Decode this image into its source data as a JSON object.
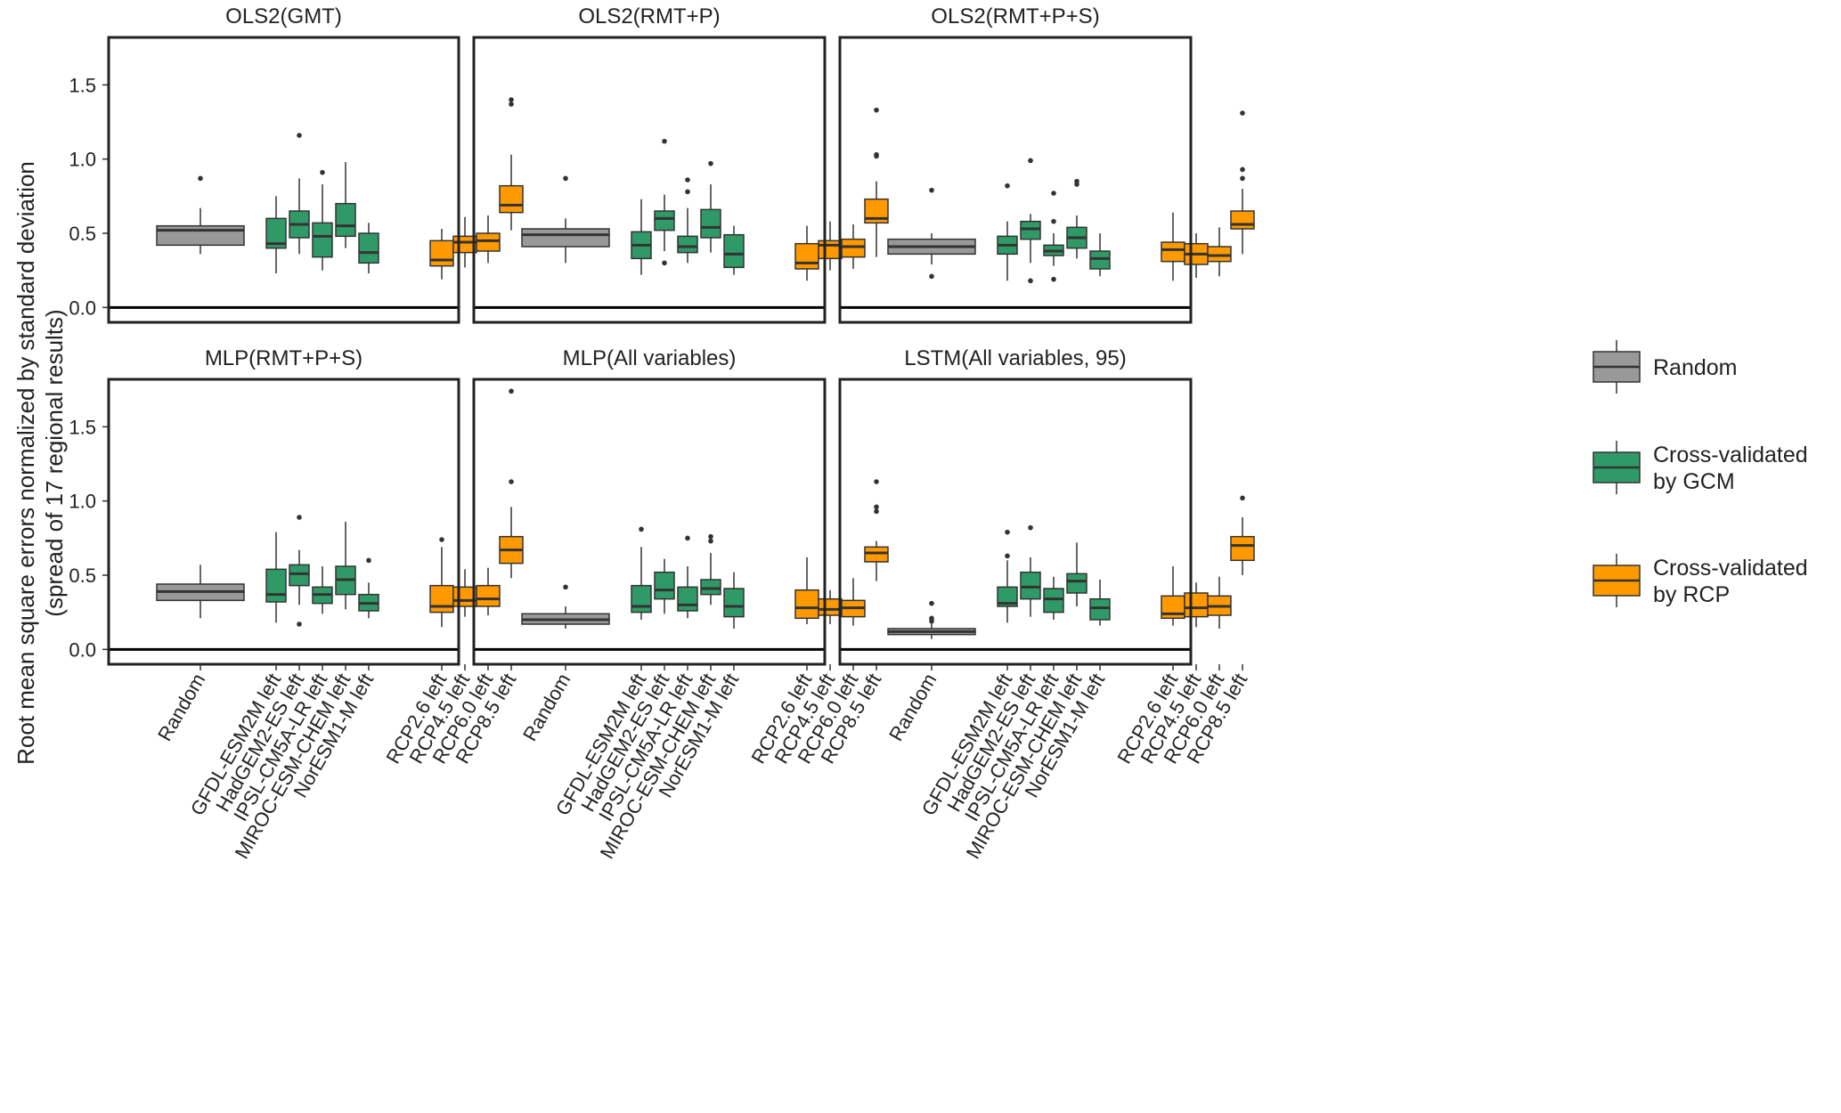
{
  "colors": {
    "random": "#999999",
    "gcm": "#2f9a67",
    "rcp": "#ff9900",
    "median": "#333333",
    "frame": "#222222"
  },
  "chart_data": {
    "type": "boxplot",
    "ylabel": "Root mean square errors normalized by standard deviation",
    "ylabel2": "(spread of 17 regional results)",
    "ylim": [
      -0.1,
      1.82
    ],
    "yticks": [
      0.0,
      0.5,
      1.0,
      1.5
    ],
    "ytick_labels": [
      "0.0",
      "0.5",
      "1.0",
      "1.5"
    ],
    "categories": [
      "Random",
      "GFDL-ESM2M left",
      "HadGEM2-ES left",
      "IPSL-CM5A-LR left",
      "MIROC-ESM-CHEM left",
      "NorESM1-M left",
      "RCP2.6 left",
      "RCP4.5 left",
      "RCP6.0 left",
      "RCP8.5 left"
    ],
    "legend": [
      {
        "label": "Random",
        "group": "random"
      },
      {
        "label": "Cross-validated by GCM",
        "line1": "Cross-validated",
        "line2": "by GCM",
        "group": "gcm"
      },
      {
        "label": "Cross-validated by RCP",
        "line1": "Cross-validated",
        "line2": "by RCP",
        "group": "rcp"
      }
    ],
    "panels": [
      {
        "title": "OLS2(GMT)",
        "boxes": [
          {
            "name": "Random",
            "group": "random",
            "min": 0.36,
            "q1": 0.42,
            "median": 0.52,
            "q3": 0.55,
            "max": 0.67,
            "outliers": [
              0.87
            ]
          },
          {
            "name": "GFDL-ESM2M left",
            "group": "gcm",
            "min": 0.23,
            "q1": 0.4,
            "median": 0.43,
            "q3": 0.6,
            "max": 0.75,
            "outliers": []
          },
          {
            "name": "HadGEM2-ES left",
            "group": "gcm",
            "min": 0.36,
            "q1": 0.47,
            "median": 0.56,
            "q3": 0.65,
            "max": 0.87,
            "outliers": [
              1.16
            ]
          },
          {
            "name": "IPSL-CM5A-LR left",
            "group": "gcm",
            "min": 0.25,
            "q1": 0.34,
            "median": 0.48,
            "q3": 0.57,
            "max": 0.83,
            "outliers": [
              0.91
            ]
          },
          {
            "name": "MIROC-ESM-CHEM left",
            "group": "gcm",
            "min": 0.4,
            "q1": 0.48,
            "median": 0.55,
            "q3": 0.7,
            "max": 0.98,
            "outliers": []
          },
          {
            "name": "NorESM1-M left",
            "group": "gcm",
            "min": 0.23,
            "q1": 0.3,
            "median": 0.37,
            "q3": 0.5,
            "max": 0.57,
            "outliers": []
          },
          {
            "name": "RCP2.6 left",
            "group": "rcp",
            "min": 0.19,
            "q1": 0.28,
            "median": 0.32,
            "q3": 0.45,
            "max": 0.53,
            "outliers": []
          },
          {
            "name": "RCP4.5 left",
            "group": "rcp",
            "min": 0.27,
            "q1": 0.37,
            "median": 0.44,
            "q3": 0.48,
            "max": 0.61,
            "outliers": []
          },
          {
            "name": "RCP6.0 left",
            "group": "rcp",
            "min": 0.3,
            "q1": 0.38,
            "median": 0.45,
            "q3": 0.5,
            "max": 0.62,
            "outliers": []
          },
          {
            "name": "RCP8.5 left",
            "group": "rcp",
            "min": 0.52,
            "q1": 0.64,
            "median": 0.69,
            "q3": 0.82,
            "max": 1.03,
            "outliers": [
              1.37,
              1.4
            ]
          }
        ]
      },
      {
        "title": "OLS2(RMT+P)",
        "boxes": [
          {
            "name": "Random",
            "group": "random",
            "min": 0.3,
            "q1": 0.41,
            "median": 0.49,
            "q3": 0.53,
            "max": 0.6,
            "outliers": [
              0.87
            ]
          },
          {
            "name": "GFDL-ESM2M left",
            "group": "gcm",
            "min": 0.22,
            "q1": 0.33,
            "median": 0.42,
            "q3": 0.51,
            "max": 0.73,
            "outliers": []
          },
          {
            "name": "HadGEM2-ES left",
            "group": "gcm",
            "min": 0.38,
            "q1": 0.52,
            "median": 0.6,
            "q3": 0.65,
            "max": 0.76,
            "outliers": [
              1.12,
              0.3
            ]
          },
          {
            "name": "IPSL-CM5A-LR left",
            "group": "gcm",
            "min": 0.3,
            "q1": 0.37,
            "median": 0.41,
            "q3": 0.48,
            "max": 0.67,
            "outliers": [
              0.86,
              0.78
            ]
          },
          {
            "name": "MIROC-ESM-CHEM left",
            "group": "gcm",
            "min": 0.37,
            "q1": 0.47,
            "median": 0.54,
            "q3": 0.66,
            "max": 0.83,
            "outliers": [
              0.97
            ]
          },
          {
            "name": "NorESM1-M left",
            "group": "gcm",
            "min": 0.22,
            "q1": 0.27,
            "median": 0.36,
            "q3": 0.49,
            "max": 0.55,
            "outliers": []
          },
          {
            "name": "RCP2.6 left",
            "group": "rcp",
            "min": 0.18,
            "q1": 0.26,
            "median": 0.3,
            "q3": 0.43,
            "max": 0.55,
            "outliers": []
          },
          {
            "name": "RCP4.5 left",
            "group": "rcp",
            "min": 0.25,
            "q1": 0.33,
            "median": 0.42,
            "q3": 0.45,
            "max": 0.58,
            "outliers": []
          },
          {
            "name": "RCP6.0 left",
            "group": "rcp",
            "min": 0.26,
            "q1": 0.34,
            "median": 0.41,
            "q3": 0.46,
            "max": 0.56,
            "outliers": []
          },
          {
            "name": "RCP8.5 left",
            "group": "rcp",
            "min": 0.34,
            "q1": 0.57,
            "median": 0.6,
            "q3": 0.73,
            "max": 0.85,
            "outliers": [
              1.33,
              1.03,
              1.02
            ]
          }
        ]
      },
      {
        "title": "OLS2(RMT+P+S)",
        "boxes": [
          {
            "name": "Random",
            "group": "random",
            "min": 0.29,
            "q1": 0.36,
            "median": 0.41,
            "q3": 0.46,
            "max": 0.5,
            "outliers": [
              0.79,
              0.21
            ]
          },
          {
            "name": "GFDL-ESM2M left",
            "group": "gcm",
            "min": 0.18,
            "q1": 0.36,
            "median": 0.42,
            "q3": 0.48,
            "max": 0.58,
            "outliers": [
              0.82
            ]
          },
          {
            "name": "HadGEM2-ES left",
            "group": "gcm",
            "min": 0.3,
            "q1": 0.46,
            "median": 0.53,
            "q3": 0.58,
            "max": 0.63,
            "outliers": [
              0.99,
              0.18
            ]
          },
          {
            "name": "IPSL-CM5A-LR left",
            "group": "gcm",
            "min": 0.28,
            "q1": 0.35,
            "median": 0.38,
            "q3": 0.42,
            "max": 0.5,
            "outliers": [
              0.77,
              0.58,
              0.19
            ]
          },
          {
            "name": "MIROC-ESM-CHEM left",
            "group": "gcm",
            "min": 0.33,
            "q1": 0.4,
            "median": 0.47,
            "q3": 0.54,
            "max": 0.62,
            "outliers": [
              0.85,
              0.83
            ]
          },
          {
            "name": "NorESM1-M left",
            "group": "gcm",
            "min": 0.21,
            "q1": 0.26,
            "median": 0.33,
            "q3": 0.38,
            "max": 0.5,
            "outliers": []
          },
          {
            "name": "RCP2.6 left",
            "group": "rcp",
            "min": 0.18,
            "q1": 0.31,
            "median": 0.39,
            "q3": 0.44,
            "max": 0.64,
            "outliers": []
          },
          {
            "name": "RCP4.5 left",
            "group": "rcp",
            "min": 0.2,
            "q1": 0.29,
            "median": 0.36,
            "q3": 0.43,
            "max": 0.5,
            "outliers": []
          },
          {
            "name": "RCP6.0 left",
            "group": "rcp",
            "min": 0.21,
            "q1": 0.31,
            "median": 0.35,
            "q3": 0.41,
            "max": 0.54,
            "outliers": []
          },
          {
            "name": "RCP8.5 left",
            "group": "rcp",
            "min": 0.36,
            "q1": 0.53,
            "median": 0.56,
            "q3": 0.65,
            "max": 0.8,
            "outliers": [
              1.31,
              0.93,
              0.87
            ]
          }
        ]
      },
      {
        "title": "MLP(RMT+P+S)",
        "boxes": [
          {
            "name": "Random",
            "group": "random",
            "min": 0.21,
            "q1": 0.33,
            "median": 0.39,
            "q3": 0.44,
            "max": 0.57,
            "outliers": []
          },
          {
            "name": "GFDL-ESM2M left",
            "group": "gcm",
            "min": 0.18,
            "q1": 0.32,
            "median": 0.37,
            "q3": 0.54,
            "max": 0.79,
            "outliers": []
          },
          {
            "name": "HadGEM2-ES left",
            "group": "gcm",
            "min": 0.3,
            "q1": 0.43,
            "median": 0.51,
            "q3": 0.57,
            "max": 0.67,
            "outliers": [
              0.89,
              0.17
            ]
          },
          {
            "name": "IPSL-CM5A-LR left",
            "group": "gcm",
            "min": 0.24,
            "q1": 0.31,
            "median": 0.37,
            "q3": 0.42,
            "max": 0.56,
            "outliers": []
          },
          {
            "name": "MIROC-ESM-CHEM left",
            "group": "gcm",
            "min": 0.27,
            "q1": 0.37,
            "median": 0.47,
            "q3": 0.56,
            "max": 0.86,
            "outliers": []
          },
          {
            "name": "NorESM1-M left",
            "group": "gcm",
            "min": 0.21,
            "q1": 0.26,
            "median": 0.31,
            "q3": 0.37,
            "max": 0.45,
            "outliers": [
              0.6
            ]
          },
          {
            "name": "RCP2.6 left",
            "group": "rcp",
            "min": 0.15,
            "q1": 0.25,
            "median": 0.29,
            "q3": 0.43,
            "max": 0.69,
            "outliers": [
              0.74
            ]
          },
          {
            "name": "RCP4.5 left",
            "group": "rcp",
            "min": 0.22,
            "q1": 0.29,
            "median": 0.33,
            "q3": 0.42,
            "max": 0.54,
            "outliers": []
          },
          {
            "name": "RCP6.0 left",
            "group": "rcp",
            "min": 0.23,
            "q1": 0.29,
            "median": 0.34,
            "q3": 0.43,
            "max": 0.55,
            "outliers": []
          },
          {
            "name": "RCP8.5 left",
            "group": "rcp",
            "min": 0.48,
            "q1": 0.58,
            "median": 0.67,
            "q3": 0.76,
            "max": 0.96,
            "outliers": [
              1.74,
              1.13
            ]
          }
        ]
      },
      {
        "title": "MLP(All variables)",
        "boxes": [
          {
            "name": "Random",
            "group": "random",
            "min": 0.14,
            "q1": 0.17,
            "median": 0.2,
            "q3": 0.24,
            "max": 0.29,
            "outliers": [
              0.42
            ]
          },
          {
            "name": "GFDL-ESM2M left",
            "group": "gcm",
            "min": 0.2,
            "q1": 0.25,
            "median": 0.29,
            "q3": 0.43,
            "max": 0.69,
            "outliers": [
              0.81
            ]
          },
          {
            "name": "HadGEM2-ES left",
            "group": "gcm",
            "min": 0.24,
            "q1": 0.34,
            "median": 0.4,
            "q3": 0.52,
            "max": 0.61,
            "outliers": []
          },
          {
            "name": "IPSL-CM5A-LR left",
            "group": "gcm",
            "min": 0.21,
            "q1": 0.26,
            "median": 0.3,
            "q3": 0.42,
            "max": 0.56,
            "outliers": [
              0.75
            ]
          },
          {
            "name": "MIROC-ESM-CHEM left",
            "group": "gcm",
            "min": 0.3,
            "q1": 0.37,
            "median": 0.41,
            "q3": 0.47,
            "max": 0.65,
            "outliers": [
              0.76,
              0.73
            ]
          },
          {
            "name": "NorESM1-M left",
            "group": "gcm",
            "min": 0.14,
            "q1": 0.22,
            "median": 0.29,
            "q3": 0.41,
            "max": 0.52,
            "outliers": []
          },
          {
            "name": "RCP2.6 left",
            "group": "rcp",
            "min": 0.17,
            "q1": 0.21,
            "median": 0.28,
            "q3": 0.4,
            "max": 0.62,
            "outliers": []
          },
          {
            "name": "RCP4.5 left",
            "group": "rcp",
            "min": 0.17,
            "q1": 0.23,
            "median": 0.27,
            "q3": 0.34,
            "max": 0.4,
            "outliers": []
          },
          {
            "name": "RCP6.0 left",
            "group": "rcp",
            "min": 0.16,
            "q1": 0.22,
            "median": 0.28,
            "q3": 0.33,
            "max": 0.48,
            "outliers": []
          },
          {
            "name": "RCP8.5 left",
            "group": "rcp",
            "min": 0.46,
            "q1": 0.59,
            "median": 0.65,
            "q3": 0.69,
            "max": 0.73,
            "outliers": [
              1.13,
              0.96,
              0.93
            ]
          }
        ]
      },
      {
        "title": "LSTM(All variables, 95)",
        "boxes": [
          {
            "name": "Random",
            "group": "random",
            "min": 0.07,
            "q1": 0.1,
            "median": 0.12,
            "q3": 0.14,
            "max": 0.18,
            "outliers": [
              0.31,
              0.21,
              0.19
            ]
          },
          {
            "name": "GFDL-ESM2M left",
            "group": "gcm",
            "min": 0.18,
            "q1": 0.29,
            "median": 0.31,
            "q3": 0.42,
            "max": 0.6,
            "outliers": [
              0.79,
              0.63
            ]
          },
          {
            "name": "HadGEM2-ES left",
            "group": "gcm",
            "min": 0.22,
            "q1": 0.34,
            "median": 0.42,
            "q3": 0.52,
            "max": 0.62,
            "outliers": [
              0.82
            ]
          },
          {
            "name": "IPSL-CM5A-LR left",
            "group": "gcm",
            "min": 0.2,
            "q1": 0.25,
            "median": 0.34,
            "q3": 0.41,
            "max": 0.49,
            "outliers": []
          },
          {
            "name": "MIROC-ESM-CHEM left",
            "group": "gcm",
            "min": 0.29,
            "q1": 0.38,
            "median": 0.46,
            "q3": 0.51,
            "max": 0.72,
            "outliers": []
          },
          {
            "name": "NorESM1-M left",
            "group": "gcm",
            "min": 0.16,
            "q1": 0.2,
            "median": 0.28,
            "q3": 0.34,
            "max": 0.47,
            "outliers": []
          },
          {
            "name": "RCP2.6 left",
            "group": "rcp",
            "min": 0.16,
            "q1": 0.21,
            "median": 0.24,
            "q3": 0.36,
            "max": 0.56,
            "outliers": []
          },
          {
            "name": "RCP4.5 left",
            "group": "rcp",
            "min": 0.15,
            "q1": 0.22,
            "median": 0.28,
            "q3": 0.38,
            "max": 0.45,
            "outliers": []
          },
          {
            "name": "RCP6.0 left",
            "group": "rcp",
            "min": 0.14,
            "q1": 0.23,
            "median": 0.29,
            "q3": 0.36,
            "max": 0.49,
            "outliers": []
          },
          {
            "name": "RCP8.5 left",
            "group": "rcp",
            "min": 0.5,
            "q1": 0.6,
            "median": 0.7,
            "q3": 0.76,
            "max": 0.89,
            "outliers": [
              1.02
            ]
          }
        ]
      }
    ]
  }
}
